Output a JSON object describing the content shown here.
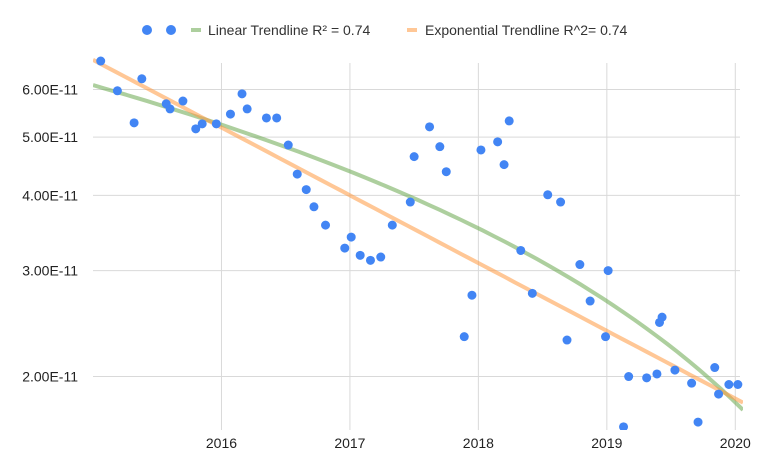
{
  "chart_data": {
    "type": "scatter",
    "title": "",
    "xlabel": "",
    "ylabel": "",
    "x_scale": "linear",
    "y_scale": "log",
    "xlim": [
      2015.0,
      2020.06
    ],
    "ylim": [
      1.63e-11,
      7.25e-11
    ],
    "grid": true,
    "legend_position": "top",
    "x_ticks": [
      "2016",
      "2017",
      "2018",
      "2019",
      "2020"
    ],
    "x_tick_values": [
      2016,
      2017,
      2018,
      2019,
      2020
    ],
    "y_ticks": [
      "2.00E-11",
      "3.00E-11",
      "4.00E-11",
      "5.00E-11",
      "6.00E-11"
    ],
    "y_tick_values": [
      2e-11,
      3e-11,
      4e-11,
      5e-11,
      6e-11
    ],
    "colors": {
      "points": "#4285f4",
      "linear": "#6aa84f",
      "exponential": "#ff9940",
      "grid": "#d9d9d9"
    },
    "legend": [
      {
        "marker": "dot",
        "label": ""
      },
      {
        "marker": "dot",
        "label": ""
      },
      {
        "marker": "line",
        "label": "Linear Trendline R² = 0.74"
      },
      {
        "marker": "line",
        "label": "Exponential Trendline R^2= 0.74"
      }
    ],
    "points": [
      [
        2015.06,
        6.69e-11
      ],
      [
        2015.19,
        5.97e-11
      ],
      [
        2015.32,
        5.28e-11
      ],
      [
        2015.38,
        6.25e-11
      ],
      [
        2015.57,
        5.68e-11
      ],
      [
        2015.6,
        5.57e-11
      ],
      [
        2015.7,
        5.74e-11
      ],
      [
        2015.8,
        5.16e-11
      ],
      [
        2015.85,
        5.26e-11
      ],
      [
        2015.96,
        5.26e-11
      ],
      [
        2016.07,
        5.46e-11
      ],
      [
        2016.16,
        5.9e-11
      ],
      [
        2016.2,
        5.57e-11
      ],
      [
        2016.35,
        5.38e-11
      ],
      [
        2016.43,
        5.38e-11
      ],
      [
        2016.52,
        4.85e-11
      ],
      [
        2016.59,
        4.34e-11
      ],
      [
        2016.66,
        4.09e-11
      ],
      [
        2016.72,
        3.83e-11
      ],
      [
        2016.81,
        3.57e-11
      ],
      [
        2016.96,
        3.27e-11
      ],
      [
        2017.01,
        3.41e-11
      ],
      [
        2017.08,
        3.18e-11
      ],
      [
        2017.16,
        3.12e-11
      ],
      [
        2017.24,
        3.16e-11
      ],
      [
        2017.33,
        3.57e-11
      ],
      [
        2017.47,
        3.9e-11
      ],
      [
        2017.5,
        4.64e-11
      ],
      [
        2017.62,
        5.2e-11
      ],
      [
        2017.7,
        4.82e-11
      ],
      [
        2017.75,
        4.38e-11
      ],
      [
        2017.89,
        2.33e-11
      ],
      [
        2017.95,
        2.73e-11
      ],
      [
        2018.02,
        4.76e-11
      ],
      [
        2018.15,
        4.91e-11
      ],
      [
        2018.2,
        4.5e-11
      ],
      [
        2018.24,
        5.32e-11
      ],
      [
        2018.33,
        3.24e-11
      ],
      [
        2018.42,
        2.75e-11
      ],
      [
        2018.54,
        4.01e-11
      ],
      [
        2018.64,
        3.9e-11
      ],
      [
        2018.69,
        2.3e-11
      ],
      [
        2018.79,
        3.07e-11
      ],
      [
        2018.87,
        2.67e-11
      ],
      [
        2018.99,
        2.33e-11
      ],
      [
        2019.01,
        3e-11
      ],
      [
        2019.13,
        1.65e-11
      ],
      [
        2019.17,
        2e-11
      ],
      [
        2019.31,
        1.99e-11
      ],
      [
        2019.39,
        2.02e-11
      ],
      [
        2019.41,
        2.46e-11
      ],
      [
        2019.43,
        2.51e-11
      ],
      [
        2019.53,
        2.05e-11
      ],
      [
        2019.66,
        1.95e-11
      ],
      [
        2019.71,
        1.68e-11
      ],
      [
        2019.84,
        2.07e-11
      ],
      [
        2019.87,
        1.87e-11
      ],
      [
        2019.95,
        1.94e-11
      ],
      [
        2020.02,
        1.94e-11
      ]
    ],
    "trendlines": [
      {
        "kind": "linear",
        "label": "Linear Trendline R² = 0.74",
        "r2": 0.74,
        "start": [
          2015.0,
          6.1e-11
        ],
        "end": [
          2020.06,
          1.76e-11
        ]
      },
      {
        "kind": "exponential",
        "label": "Exponential Trendline R^2= 0.74",
        "r2": 0.74,
        "start": [
          2015.0,
          6.72e-11
        ],
        "end": [
          2020.06,
          1.81e-11
        ]
      }
    ]
  }
}
